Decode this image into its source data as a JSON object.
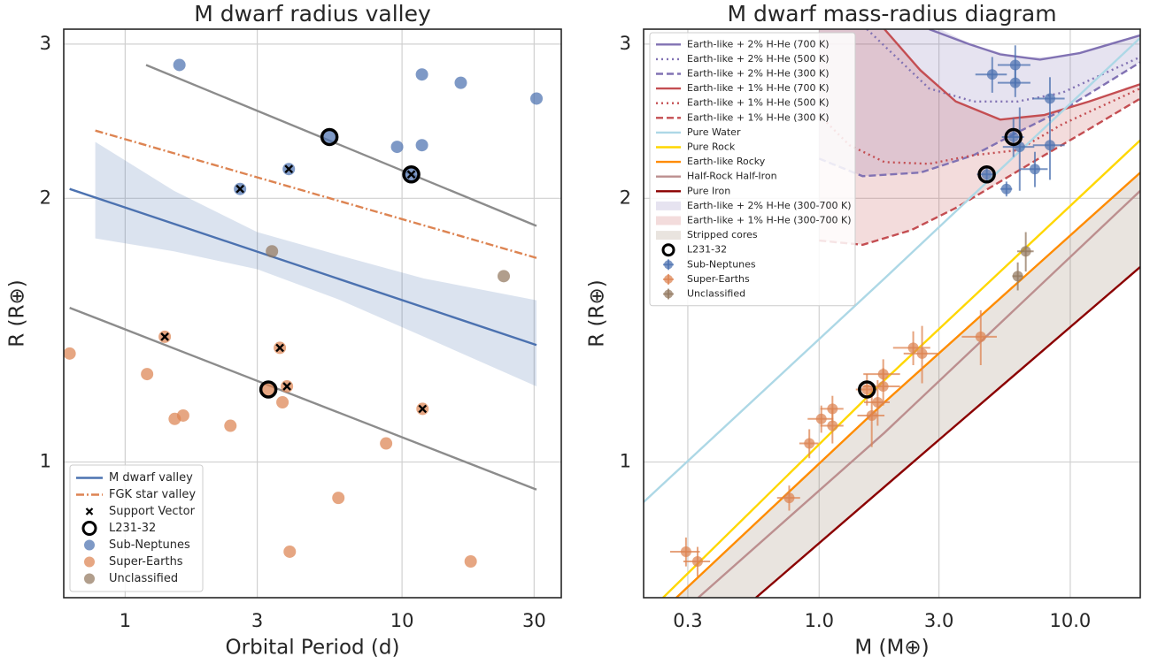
{
  "chart_data": [
    {
      "type": "scatter",
      "title": "M dwarf radius valley",
      "xlabel": "Orbital Period (d)",
      "ylabel": "R (R⊕)",
      "xscale": "log",
      "yscale": "log",
      "xlim": [
        0.6,
        37.6
      ],
      "ylim": [
        0.7,
        3.12
      ],
      "xticks": [
        1,
        3,
        10,
        30
      ],
      "yticks": [
        1,
        2,
        3
      ],
      "grid": true,
      "legend": "lower left",
      "series": [
        {
          "kind": "band",
          "color": "#4c72b0",
          "x": [
            0.78,
            1.5,
            3,
            6,
            12,
            30.6
          ],
          "upper": [
            2.32,
            2.04,
            1.83,
            1.72,
            1.62,
            1.53
          ],
          "lower": [
            1.8,
            1.74,
            1.66,
            1.53,
            1.39,
            1.22
          ]
        },
        {
          "name": "M dwarf valley",
          "kind": "line",
          "style": "solid",
          "color": "#4c72b0",
          "x": [
            0.63,
            30.6
          ],
          "values": [
            2.05,
            1.36
          ]
        },
        {
          "name": "FGK star valley",
          "kind": "line",
          "style": "dashdot",
          "color": "#dd8452",
          "x": [
            0.78,
            30.6
          ],
          "values": [
            2.39,
            1.71
          ]
        },
        {
          "kind": "line",
          "style": "solid",
          "color": "#8c8c8c",
          "x": [
            1.19,
            30.6
          ],
          "values": [
            2.84,
            1.86
          ]
        },
        {
          "kind": "line",
          "style": "solid",
          "color": "#8c8c8c",
          "x": [
            0.63,
            30.6
          ],
          "values": [
            1.5,
            0.93
          ]
        },
        {
          "name": "Support Vector",
          "kind": "scatter",
          "marker": "x",
          "color": "#000000",
          "x": [
            3.9,
            2.6,
            10.8,
            1.39,
            3.62,
            3.84,
            11.86
          ],
          "values": [
            2.16,
            2.05,
            2.13,
            1.39,
            1.35,
            1.22,
            1.15
          ]
        },
        {
          "name": "L231-32",
          "kind": "scatter",
          "marker": "ring",
          "color": "#000000",
          "x": [
            5.47,
            10.8,
            3.29
          ],
          "values": [
            2.35,
            2.13,
            1.21
          ]
        },
        {
          "name": "Sub-Neptunes",
          "kind": "scatter",
          "marker": "circle",
          "color": "#4c72b0",
          "x": [
            1.57,
            11.8,
            16.3,
            30.6,
            9.6,
            11.8,
            3.9,
            2.6,
            5.47,
            10.8
          ],
          "values": [
            2.84,
            2.77,
            2.71,
            2.6,
            2.29,
            2.3,
            2.16,
            2.05,
            2.35,
            2.13
          ]
        },
        {
          "name": "Super-Earths",
          "kind": "scatter",
          "marker": "circle",
          "color": "#dd8452",
          "x": [
            0.63,
            1.2,
            1.39,
            1.51,
            1.62,
            2.4,
            3.29,
            3.62,
            3.7,
            3.84,
            11.86,
            8.76,
            5.89,
            3.93,
            17.7
          ],
          "values": [
            1.33,
            1.26,
            1.39,
            1.12,
            1.13,
            1.1,
            1.21,
            1.35,
            1.17,
            1.22,
            1.15,
            1.05,
            0.91,
            0.79,
            0.77
          ]
        },
        {
          "name": "Unclassified",
          "kind": "scatter",
          "marker": "circle",
          "color": "#937860",
          "x": [
            3.39,
            23.3
          ],
          "values": [
            1.74,
            1.63
          ]
        }
      ]
    },
    {
      "type": "scatter",
      "title": "M dwarf mass-radius diagram",
      "xlabel": "M (M⊕)",
      "ylabel": "R (R⊕)",
      "xscale": "log",
      "yscale": "log",
      "xlim": [
        0.2,
        19.0
      ],
      "ylim": [
        0.7,
        3.12
      ],
      "xticks": [
        0.3,
        {
          "value": 1,
          "label": "1.0"
        },
        {
          "value": 3,
          "label": "3.0"
        },
        {
          "value": 10,
          "label": "10.0"
        }
      ],
      "yticks": [
        1,
        2,
        3
      ],
      "grid": true,
      "legend": "upper left",
      "series": [
        {
          "name": "Earth-like + 2% H-He (700 K)",
          "kind": "line",
          "style": "solid",
          "color": "#8172b3",
          "x": [
            2.74,
            3.95,
            5.26,
            7.58,
            10.9,
            19.0
          ],
          "values": [
            3.12,
            3.0,
            2.92,
            2.88,
            2.93,
            3.07
          ]
        },
        {
          "name": "Earth-like + 2% H-He (500 K)",
          "kind": "line",
          "style": "dotted",
          "color": "#8172b3",
          "x": [
            1.55,
            2.74,
            4.12,
            6.18,
            9.29,
            19.0
          ],
          "values": [
            3.12,
            2.67,
            2.58,
            2.58,
            2.64,
            2.9
          ]
        },
        {
          "name": "Earth-like + 2% H-He (300 K)",
          "kind": "line",
          "style": "dashed",
          "color": "#8172b3",
          "x": [
            1.0,
            1.49,
            2.53,
            4.12,
            6.18,
            9.29,
            19.0
          ],
          "values": [
            2.22,
            2.12,
            2.14,
            2.24,
            2.38,
            2.52,
            2.86
          ]
        },
        {
          "name": "Earth-like + 1% H-He (700 K)",
          "kind": "line",
          "style": "solid",
          "color": "#c44e52",
          "x": [
            1.82,
            2.53,
            3.5,
            5.26,
            7.89,
            11.9,
            19.0
          ],
          "values": [
            3.12,
            2.8,
            2.58,
            2.46,
            2.49,
            2.58,
            2.7
          ]
        },
        {
          "name": "Earth-like + 1% H-He (500 K)",
          "kind": "line",
          "style": "dotted",
          "color": "#c44e52",
          "x": [
            1.0,
            1.32,
            1.82,
            2.74,
            4.12,
            6.18,
            9.29,
            19.0
          ],
          "values": [
            2.49,
            2.3,
            2.2,
            2.19,
            2.24,
            2.27,
            2.43,
            2.67
          ]
        },
        {
          "name": "Earth-like + 1% H-He (300 K)",
          "kind": "line",
          "style": "dashed",
          "color": "#c44e52",
          "x": [
            1.0,
            1.49,
            2.33,
            3.5,
            5.26,
            7.89,
            11.9,
            19.0
          ],
          "values": [
            1.79,
            1.77,
            1.84,
            1.95,
            2.09,
            2.24,
            2.4,
            2.6
          ]
        },
        {
          "name": "Pure Water",
          "kind": "line",
          "style": "solid",
          "color": "#add8e6",
          "x": [
            0.2,
            1.82,
            19.0
          ],
          "values": [
            0.9,
            1.62,
            3.05
          ]
        },
        {
          "name": "Pure Rock",
          "kind": "line",
          "style": "solid",
          "color": "#ffd700",
          "x": [
            0.239,
            1.82,
            19.0
          ],
          "values": [
            0.7,
            1.24,
            2.33
          ]
        },
        {
          "name": "Earth-like Rocky",
          "kind": "line",
          "style": "solid",
          "color": "#ff8c00",
          "x": [
            0.27,
            1.82,
            19.0
          ],
          "values": [
            0.7,
            1.17,
            2.14
          ]
        },
        {
          "name": "Half-Rock Half-Iron",
          "kind": "line",
          "style": "solid",
          "color": "#bc8f8f",
          "x": [
            0.33,
            1.82,
            19.0
          ],
          "values": [
            0.7,
            1.08,
            2.04
          ]
        },
        {
          "name": "Pure Iron",
          "kind": "line",
          "style": "solid",
          "color": "#8b0000",
          "x": [
            0.56,
            3.0,
            19.0
          ],
          "values": [
            0.7,
            1.06,
            1.67
          ]
        },
        {
          "name": "Earth-like + 2% H-He (300-700 K)",
          "kind": "band",
          "color": "#8172b3",
          "x": [
            1.0,
            1.49,
            2.53,
            4.12,
            6.18,
            9.29,
            19.0
          ],
          "upper": [
            3.2,
            3.2,
            3.2,
            2.99,
            2.9,
            2.9,
            3.07
          ],
          "lower": [
            2.22,
            2.12,
            2.14,
            2.24,
            2.38,
            2.52,
            2.86
          ]
        },
        {
          "name": "Earth-like + 1% H-He (300-700 K)",
          "kind": "band",
          "color": "#c44e52",
          "x": [
            1.0,
            1.49,
            1.82,
            2.33,
            3.5,
            5.26,
            7.89,
            11.9,
            19.0
          ],
          "upper": [
            3.2,
            3.2,
            3.12,
            2.88,
            2.58,
            2.46,
            2.49,
            2.58,
            2.7
          ],
          "lower": [
            1.79,
            1.77,
            1.8,
            1.84,
            1.95,
            2.09,
            2.24,
            2.4,
            2.6
          ]
        },
        {
          "name": "Stripped cores",
          "kind": "band",
          "color": "#937860",
          "x": [
            0.27,
            0.56,
            1.82,
            3.0,
            19.0
          ],
          "upper": [
            0.7,
            0.85,
            1.17,
            1.33,
            2.14
          ],
          "lower": [
            0.58,
            0.7,
            0.94,
            1.06,
            1.67
          ]
        },
        {
          "name": "L231-32",
          "kind": "scatter",
          "marker": "ring",
          "color": "#000000",
          "x": [
            5.94,
            4.65,
            1.55
          ],
          "values": [
            2.35,
            2.13,
            1.21
          ]
        },
        {
          "name": "Sub-Neptunes",
          "kind": "scatter",
          "marker": "circle",
          "color": "#4c72b0",
          "x": [
            4.89,
            6.04,
            6.04,
            8.3,
            5.94,
            6.29,
            8.3,
            7.23,
            4.65,
            5.57
          ],
          "values": [
            2.77,
            2.84,
            2.71,
            2.6,
            2.35,
            2.29,
            2.3,
            2.16,
            2.13,
            2.05
          ],
          "xerr": [
            0.7,
            0.9,
            0.9,
            1.2,
            0.6,
            0.9,
            1.2,
            0.9,
            0.4,
            0.3
          ],
          "yerr": [
            0.13,
            0.15,
            0.1,
            0.15,
            0.12,
            0.25,
            0.2,
            0.1,
            0.05,
            0.04
          ]
        },
        {
          "name": "Super-Earths",
          "kind": "scatter",
          "marker": "circle",
          "color": "#dd8452",
          "x": [
            0.295,
            0.328,
            0.76,
            0.914,
            1.02,
            1.13,
            1.13,
            1.55,
            1.62,
            1.71,
            1.8,
            1.8,
            2.37,
            2.57,
            4.4
          ],
          "values": [
            0.79,
            0.77,
            0.91,
            1.05,
            1.12,
            1.15,
            1.1,
            1.21,
            1.13,
            1.17,
            1.22,
            1.26,
            1.35,
            1.33,
            1.39
          ],
          "xerr": [
            0.04,
            0.04,
            0.08,
            0.08,
            0.12,
            0.12,
            0.12,
            0.15,
            0.2,
            0.2,
            0.3,
            0.3,
            0.4,
            0.4,
            0.7
          ],
          "yerr": [
            0.03,
            0.03,
            0.03,
            0.04,
            0.04,
            0.04,
            0.05,
            0.05,
            0.09,
            0.07,
            0.06,
            0.05,
            0.06,
            0.1,
            0.1
          ]
        },
        {
          "name": "Unclassified",
          "kind": "scatter",
          "marker": "circle",
          "color": "#937860",
          "x": [
            6.65,
            6.18
          ],
          "values": [
            1.74,
            1.63
          ],
          "xerr": [
            0.5,
            0.3
          ],
          "yerr": [
            0.09,
            0.06
          ]
        }
      ]
    }
  ]
}
